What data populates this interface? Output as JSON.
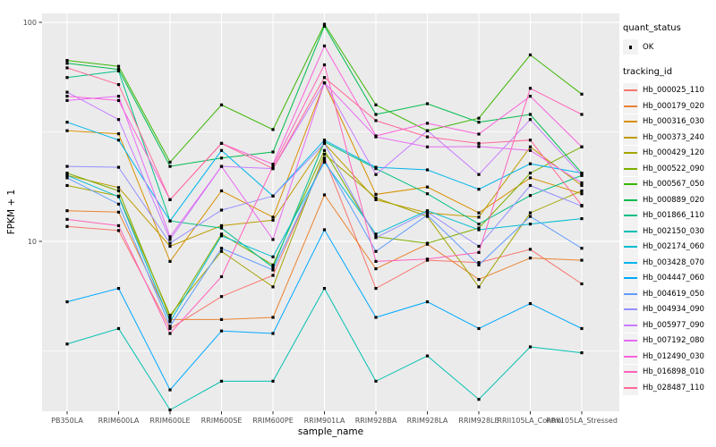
{
  "figure": {
    "background": "#FFFFFF",
    "panel_background": "#EBEBEB",
    "gridline_color": "#FFFFFF",
    "tick_label_color": "#4D4D4D",
    "point_color": "#000000"
  },
  "chart_data": {
    "type": "line",
    "title": "",
    "xlabel": "sample_name",
    "ylabel": "FPKM + 1",
    "y_scale": "log10",
    "ylim": [
      1.6,
      110
    ],
    "grid": true,
    "legend_position": "right",
    "marker": {
      "shape": "square",
      "color": "#000000",
      "size": 3.2
    },
    "y_axis_ticks": [
      {
        "label": "100",
        "value": 100
      },
      {
        "label": "10",
        "value": 10
      }
    ],
    "y_minor_gridlines": [
      3.1623,
      31.623
    ],
    "categories": [
      "PB350LA",
      "RRIM600LA",
      "RRIM600LE",
      "RRIM600SE",
      "RRIM600PE",
      "RRIM901LA",
      "RRIM928BA",
      "RRIM928LA",
      "RRIM928LE",
      "RRII105LA_Control",
      "RRII105LA_Stressed"
    ],
    "legend": {
      "quant_status": {
        "title": "quant_status",
        "items": [
          {
            "label": "OK",
            "marker": "black-point"
          }
        ]
      },
      "tracking_id": {
        "title": "tracking_id"
      }
    },
    "series": [
      {
        "tracking_id": "Hb_000025_110",
        "color": "#F8766D",
        "quant_status": "OK",
        "values": [
          11.7,
          11.2,
          4.0,
          5.6,
          7.0,
          24.0,
          6.1,
          8.2,
          8.0,
          9.2,
          6.4
        ]
      },
      {
        "tracking_id": "Hb_000179_020",
        "color": "#EA8331",
        "quant_status": "OK",
        "values": [
          13.8,
          13.6,
          4.4,
          4.4,
          4.5,
          16.3,
          7.5,
          9.7,
          6.7,
          8.4,
          8.2
        ]
      },
      {
        "tracking_id": "Hb_000316_030",
        "color": "#D89000",
        "quant_status": "OK",
        "values": [
          32.0,
          31.0,
          8.1,
          17.0,
          12.9,
          53.0,
          16.4,
          17.7,
          13.5,
          19.5,
          16.5
        ]
      },
      {
        "tracking_id": "Hb_000373_240",
        "color": "#C09B00",
        "quant_status": "OK",
        "values": [
          20.0,
          17.6,
          9.5,
          11.8,
          12.5,
          28.0,
          15.5,
          13.5,
          12.9,
          27.0,
          18.0
        ]
      },
      {
        "tracking_id": "Hb_000429_120",
        "color": "#A3A500",
        "quant_status": "OK",
        "values": [
          18.0,
          16.1,
          4.6,
          9.0,
          6.2,
          25.0,
          15.8,
          13.0,
          6.2,
          13.5,
          17.0
        ]
      },
      {
        "tracking_id": "Hb_000522_090",
        "color": "#7CAE00",
        "quant_status": "OK",
        "values": [
          20.5,
          17.0,
          4.5,
          10.8,
          7.8,
          26.0,
          10.5,
          9.8,
          11.5,
          20.5,
          27.0
        ]
      },
      {
        "tracking_id": "Hb_000567_050",
        "color": "#39B600",
        "quant_status": "OK",
        "values": [
          67.0,
          63.0,
          23.0,
          42.0,
          32.4,
          98.0,
          42.0,
          32.0,
          36.5,
          71.0,
          47.0
        ]
      },
      {
        "tracking_id": "Hb_000889_020",
        "color": "#00BB4E",
        "quant_status": "OK",
        "values": [
          65.0,
          61.0,
          22.0,
          24.0,
          25.6,
          96.0,
          38.0,
          42.5,
          35.0,
          38.0,
          20.5
        ]
      },
      {
        "tracking_id": "Hb_001866_110",
        "color": "#00C087",
        "quant_status": "OK",
        "values": [
          56.0,
          60.0,
          12.4,
          11.5,
          7.6,
          28.5,
          21.5,
          16.5,
          12.0,
          16.2,
          20.0
        ]
      },
      {
        "tracking_id": "Hb_002150_030",
        "color": "#00C0B2",
        "quant_status": "OK",
        "values": [
          3.4,
          4.0,
          1.7,
          2.3,
          2.3,
          6.1,
          2.3,
          3.0,
          1.9,
          3.3,
          3.1
        ]
      },
      {
        "tracking_id": "Hb_002174_060",
        "color": "#00BDD2",
        "quant_status": "OK",
        "values": [
          20.0,
          16.0,
          4.3,
          10.6,
          8.5,
          23.0,
          10.8,
          13.8,
          11.3,
          12.0,
          12.7
        ]
      },
      {
        "tracking_id": "Hb_003428_070",
        "color": "#00B5EC",
        "quant_status": "OK",
        "values": [
          35.0,
          29.0,
          12.4,
          26.0,
          16.1,
          29.0,
          21.8,
          21.2,
          17.3,
          22.6,
          20.5
        ]
      },
      {
        "tracking_id": "Hb_004447_060",
        "color": "#00A9FF",
        "quant_status": "OK",
        "values": [
          5.3,
          6.1,
          2.1,
          3.9,
          3.8,
          11.3,
          4.5,
          5.3,
          4.0,
          5.2,
          4.0
        ]
      },
      {
        "tracking_id": "Hb_004619_050",
        "color": "#619CFF",
        "quant_status": "OK",
        "values": [
          19.5,
          14.8,
          4.1,
          9.3,
          7.4,
          23.5,
          9.0,
          13.2,
          7.8,
          13.0,
          9.3
        ]
      },
      {
        "tracking_id": "Hb_004934_090",
        "color": "#9590FF",
        "quant_status": "OK",
        "values": [
          22.0,
          21.8,
          9.8,
          13.9,
          16.1,
          28.0,
          10.4,
          13.6,
          9.5,
          18.0,
          14.5
        ]
      },
      {
        "tracking_id": "Hb_005977_090",
        "color": "#C77CFF",
        "quant_status": "OK",
        "values": [
          48.0,
          36.0,
          10.2,
          22.0,
          21.5,
          53.0,
          20.2,
          32.0,
          20.2,
          36.0,
          20.0
        ]
      },
      {
        "tracking_id": "Hb_007192_080",
        "color": "#E76BF3",
        "quant_status": "OK",
        "values": [
          44.0,
          46.0,
          10.5,
          22.0,
          10.2,
          53.0,
          30.0,
          27.0,
          27.1,
          26.0,
          18.5
        ]
      },
      {
        "tracking_id": "Hb_012490_030",
        "color": "#FA62DB",
        "quant_status": "OK",
        "values": [
          46.0,
          44.0,
          15.5,
          28.0,
          22.5,
          78.0,
          30.3,
          34.6,
          30.9,
          46.0,
          27.0
        ]
      },
      {
        "tracking_id": "Hb_016898_010",
        "color": "#FF62BC",
        "quant_status": "OK",
        "values": [
          12.6,
          11.8,
          3.8,
          6.9,
          22.0,
          64.0,
          8.1,
          8.3,
          8.9,
          50.0,
          38.0
        ]
      },
      {
        "tracking_id": "Hb_028487_110",
        "color": "#FF6A98",
        "quant_status": "OK",
        "values": [
          62.0,
          52.0,
          15.5,
          28.0,
          21.5,
          56.0,
          35.6,
          30.0,
          28.0,
          29.0,
          14.6
        ]
      }
    ]
  }
}
